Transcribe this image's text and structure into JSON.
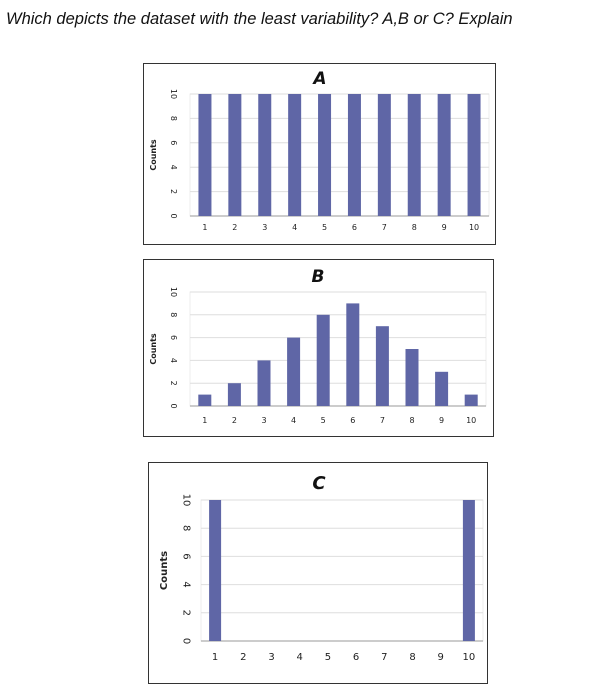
{
  "question": "Which depicts the dataset with the least variability? A,B or C? Explain",
  "colors": {
    "bar": "#5f66a6",
    "grid": "#dedede",
    "axis": "#999999"
  },
  "chart_data": [
    {
      "type": "bar",
      "title": "A",
      "ylabel": "Counts",
      "categories": [
        "1",
        "2",
        "3",
        "4",
        "5",
        "6",
        "7",
        "8",
        "9",
        "10"
      ],
      "values": [
        10,
        10,
        10,
        10,
        10,
        10,
        10,
        10,
        10,
        10
      ],
      "yticks": [
        "0",
        "2",
        "4",
        "6",
        "8",
        "10"
      ],
      "ylim": [
        0,
        10
      ],
      "grid": true
    },
    {
      "type": "bar",
      "title": "B",
      "ylabel": "Counts",
      "categories": [
        "1",
        "2",
        "3",
        "4",
        "5",
        "6",
        "7",
        "8",
        "9",
        "10"
      ],
      "values": [
        1,
        2,
        4,
        6,
        8,
        9,
        7,
        5,
        3,
        1
      ],
      "yticks": [
        "0",
        "2",
        "4",
        "6",
        "8",
        "10"
      ],
      "ylim": [
        0,
        10
      ],
      "grid": true
    },
    {
      "type": "bar",
      "title": "C",
      "ylabel": "Counts",
      "categories": [
        "1",
        "2",
        "3",
        "4",
        "5",
        "6",
        "7",
        "8",
        "9",
        "10"
      ],
      "values": [
        10,
        0,
        0,
        0,
        0,
        0,
        0,
        0,
        0,
        10
      ],
      "yticks": [
        "0",
        "2",
        "4",
        "6",
        "8",
        "10"
      ],
      "ylim": [
        0,
        10
      ],
      "grid": true
    }
  ]
}
